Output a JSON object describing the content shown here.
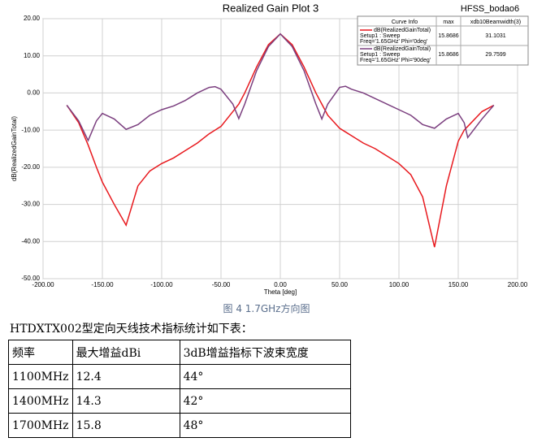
{
  "chart_data": {
    "type": "line",
    "title": "Realized Gain Plot 3",
    "subtitle": "HFSS_bodao6",
    "x_label": "Theta [deg]",
    "y_label": "dB(RealizedGainTotal)",
    "legend_headers": [
      "Curve Info",
      "max",
      "xdb10Beamwidth(3)"
    ],
    "x": [
      -180,
      -170,
      -162,
      -155,
      -150,
      -140,
      -130,
      -120,
      -110,
      -100,
      -90,
      -80,
      -70,
      -60,
      -55,
      -50,
      -40,
      -35,
      -30,
      -20,
      -10,
      0,
      10,
      20,
      30,
      35,
      40,
      50,
      55,
      60,
      70,
      80,
      90,
      100,
      110,
      120,
      130,
      140,
      150,
      155,
      158,
      170,
      180
    ],
    "series": [
      {
        "name": "dB(RealizedGainTotal)",
        "setup": "Setup1 : Sweep",
        "info": "Freq='1.65GHz' Phi='0deg'",
        "max": 15.8686,
        "beamwidth": 31.1031,
        "color": "#e8191e",
        "values": [
          -3.3,
          -8,
          -14,
          -20,
          -24,
          -30,
          -35.6,
          -25,
          -21,
          -19,
          -17.5,
          -15.5,
          -13.5,
          -11,
          -10,
          -9,
          -5,
          -3,
          0,
          7,
          13,
          15.9,
          13,
          7,
          0,
          -3,
          -6,
          -9.5,
          -10.5,
          -11.5,
          -13.5,
          -15,
          -17,
          -19,
          -22,
          -28,
          -41.5,
          -25,
          -13,
          -10,
          -9,
          -5,
          -3.3
        ]
      },
      {
        "name": "dB(RealizedGainTotal)",
        "setup": "Setup1 : Sweep",
        "info": "Freq='1.65GHz' Phi='90deg'",
        "max": 15.8686,
        "beamwidth": 29.7599,
        "color": "#7b3f7f",
        "values": [
          -3.3,
          -7.5,
          -12.8,
          -7.5,
          -5.5,
          -7,
          -9.8,
          -8.5,
          -6,
          -4.5,
          -3.5,
          -2,
          0,
          1.5,
          1.7,
          1,
          -3,
          -6.9,
          -3,
          6,
          12.5,
          15.9,
          12.5,
          6,
          -3,
          -7,
          -3,
          1.5,
          1.8,
          1,
          0,
          -1.5,
          -3,
          -4.5,
          -6,
          -8.5,
          -9.5,
          -7,
          -5.5,
          -8,
          -12,
          -7,
          -3.3
        ]
      }
    ],
    "xlim": [
      -200,
      200
    ],
    "xticks": [
      {
        "value": -200,
        "label": "-200.00"
      },
      {
        "value": -150,
        "label": "-150.00"
      },
      {
        "value": -100,
        "label": "-100.00"
      },
      {
        "value": -50,
        "label": "-50.00"
      },
      {
        "value": 0,
        "label": "0.00"
      },
      {
        "value": 50,
        "label": "50.00"
      },
      {
        "value": 100,
        "label": "100.00"
      },
      {
        "value": 150,
        "label": "150.00"
      },
      {
        "value": 200,
        "label": "200.00"
      }
    ],
    "ylim": [
      -50,
      20
    ],
    "yticks": [
      {
        "value": -50,
        "label": "-50.00"
      },
      {
        "value": -40,
        "label": "-40.00"
      },
      {
        "value": -30,
        "label": "-30.00"
      },
      {
        "value": -20,
        "label": "-20.00"
      },
      {
        "value": -10,
        "label": "-10.00"
      },
      {
        "value": 0,
        "label": "0.00"
      },
      {
        "value": 10,
        "label": "10.00"
      },
      {
        "value": 20,
        "label": "20.00"
      }
    ],
    "grid": true
  },
  "caption": "图 4 1.7GHz方向图",
  "intro": "HTDXTX002型定向天线技术指标统计如下表：",
  "table": {
    "rows": [
      [
        "频率",
        "最大增益dBi",
        "3dB增益指标下波束宽度"
      ],
      [
        "1100MHz",
        "12.4",
        "44°"
      ],
      [
        "1400MHz",
        "14.3",
        "42°"
      ],
      [
        "1700MHz",
        "15.8",
        "48°"
      ]
    ]
  }
}
